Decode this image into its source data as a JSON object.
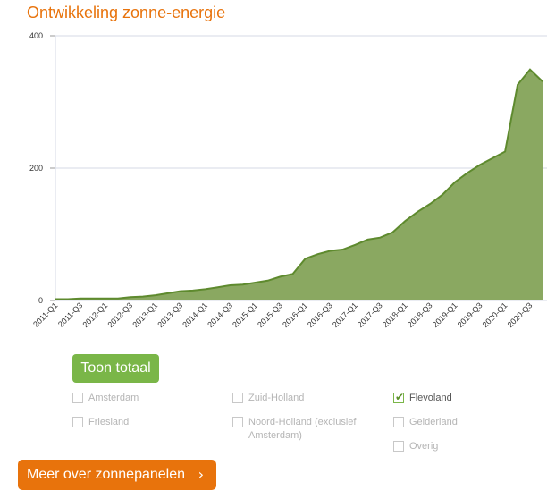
{
  "page": {
    "title": "Ontwikkeling zonne-energie"
  },
  "chart_data": {
    "type": "area",
    "title": "Ontwikkeling zonne-energie",
    "xlabel": "",
    "ylabel": "",
    "ylim": [
      0,
      400
    ],
    "y_ticks": [
      "0",
      "200",
      "400"
    ],
    "grid": true,
    "fill_color": "#8aa861",
    "line_color": "#5e8a2e",
    "categories": [
      "2011-Q1",
      "2011-Q2",
      "2011-Q3",
      "2011-Q4",
      "2012-Q1",
      "2012-Q2",
      "2012-Q3",
      "2012-Q4",
      "2013-Q1",
      "2013-Q2",
      "2013-Q3",
      "2013-Q4",
      "2014-Q1",
      "2014-Q2",
      "2014-Q3",
      "2014-Q4",
      "2015-Q1",
      "2015-Q2",
      "2015-Q3",
      "2015-Q4",
      "2016-Q1",
      "2016-Q2",
      "2016-Q3",
      "2016-Q4",
      "2017-Q1",
      "2017-Q2",
      "2017-Q3",
      "2017-Q4",
      "2018-Q1",
      "2018-Q2",
      "2018-Q3",
      "2018-Q4",
      "2019-Q1",
      "2019-Q2",
      "2019-Q3",
      "2019-Q4",
      "2020-Q1",
      "2020-Q2",
      "2020-Q3",
      "2020-Q4"
    ],
    "x_tick_labels": [
      "2011-Q1",
      "2011-Q3",
      "2012-Q1",
      "2012-Q3",
      "2013-Q1",
      "2013-Q3",
      "2014-Q1",
      "2014-Q3",
      "2015-Q1",
      "2015-Q3",
      "2016-Q1",
      "2016-Q3",
      "2017-Q1",
      "2017-Q3",
      "2018-Q1",
      "2018-Q3",
      "2019-Q1",
      "2019-Q3",
      "2020-Q1",
      "2020-Q3"
    ],
    "series": [
      {
        "values": [
          2,
          2,
          3,
          3,
          3,
          3,
          5,
          6,
          8,
          11,
          14,
          15,
          17,
          20,
          23,
          24,
          27,
          30,
          36,
          40,
          63,
          70,
          75,
          77,
          84,
          92,
          95,
          103,
          120,
          134,
          146,
          160,
          179,
          193,
          205,
          215,
          225,
          326,
          349,
          331
        ]
      }
    ]
  },
  "controls": {
    "toon_totaal": "Toon totaal",
    "checkboxes": [
      {
        "label": "Amsterdam",
        "checked": false
      },
      {
        "label": "Zuid-Holland",
        "checked": false
      },
      {
        "label": "Flevoland",
        "checked": true
      },
      {
        "label": "Friesland",
        "checked": false
      },
      {
        "label": "Noord-Holland (exclusief",
        "label2": "Amsterdam)",
        "checked": false
      },
      {
        "label": "Gelderland",
        "checked": false
      },
      {
        "label": "Overig",
        "checked": false
      }
    ],
    "check_glyph": "✔"
  },
  "cta": {
    "label": "Meer over zonnepanelen",
    "chevron": "›"
  }
}
